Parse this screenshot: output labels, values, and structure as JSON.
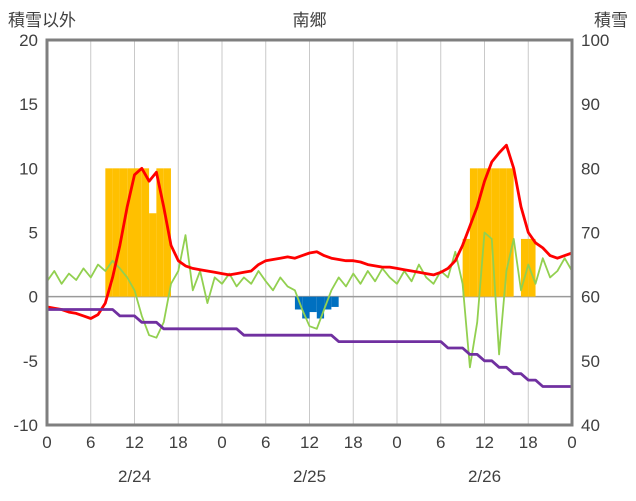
{
  "header": {
    "title": "南郷",
    "left_axis_label": "積雪以外",
    "right_axis_label": "積雪"
  },
  "chart_data": {
    "type": "mixed-bar-line",
    "x_unit": "hour",
    "x_range": [
      0,
      72
    ],
    "left_axis": {
      "label": "積雪以外",
      "range": [
        -10,
        20
      ],
      "ticks": [
        20,
        15,
        10,
        5,
        0,
        -5,
        -10
      ]
    },
    "right_axis": {
      "label": "積雪",
      "range": [
        40,
        100
      ],
      "ticks": [
        100,
        90,
        80,
        70,
        60,
        50,
        40
      ]
    },
    "x_ticks": {
      "hours": [
        0,
        6,
        12,
        18,
        24,
        30,
        36,
        42,
        48,
        54,
        60,
        66,
        72
      ],
      "labels": [
        "0",
        "6",
        "12",
        "18",
        "0",
        "6",
        "12",
        "18",
        "0",
        "6",
        "12",
        "18",
        "0"
      ]
    },
    "date_labels": [
      {
        "text": "2/24",
        "hour": 12
      },
      {
        "text": "2/25",
        "hour": 36
      },
      {
        "text": "2/26",
        "hour": 60
      }
    ],
    "grid": {
      "vertical": true,
      "horizontal": false,
      "zero_line": true
    },
    "colors": {
      "grid": "#c9c9c9",
      "zero_line": "#9a9a9a",
      "border": "#7f7f7f",
      "text": "#404040"
    },
    "series": [
      {
        "name": "orange-bars",
        "type": "bar",
        "axis": "left",
        "color": "#FFC000",
        "values": {
          "8": 10,
          "9": 10,
          "10": 10,
          "11": 10,
          "12": 10,
          "13": 10,
          "14": 6.5,
          "15": 10,
          "16": 10,
          "57": 4.5,
          "58": 10,
          "59": 10,
          "60": 10,
          "61": 10,
          "62": 10,
          "63": 10,
          "65": 4.5,
          "66": 4.5
        }
      },
      {
        "name": "blue-bars",
        "type": "bar",
        "axis": "left",
        "color": "#0070C0",
        "values": {
          "34": -1.0,
          "35": -1.7,
          "36": -1.2,
          "37": -1.7,
          "38": -1.0,
          "39": -0.8
        }
      },
      {
        "name": "green-line",
        "type": "line",
        "axis": "left",
        "color": "#92D050",
        "width": 1.8,
        "values": [
          1.2,
          2.0,
          1.0,
          1.8,
          1.3,
          2.2,
          1.5,
          2.5,
          2.0,
          2.8,
          2.2,
          1.5,
          0.5,
          -1.5,
          -3.0,
          -3.2,
          -2.0,
          1.0,
          2.0,
          4.8,
          0.5,
          2.0,
          -0.5,
          1.5,
          1.0,
          1.8,
          0.8,
          1.5,
          1.0,
          2.0,
          1.2,
          0.5,
          1.5,
          0.8,
          0.5,
          -1.0,
          -2.3,
          -2.5,
          -1.0,
          0.5,
          1.5,
          0.8,
          1.8,
          1.0,
          2.0,
          1.2,
          2.2,
          1.5,
          1.0,
          2.0,
          1.2,
          2.5,
          1.5,
          1.0,
          2.0,
          1.5,
          3.5,
          1.0,
          -5.5,
          -2.0,
          5.0,
          4.5,
          -4.5,
          2.0,
          4.5,
          0.5,
          2.5,
          1.0,
          3.0,
          1.5,
          2.0,
          3.0,
          2.0
        ]
      },
      {
        "name": "red-line",
        "type": "line",
        "axis": "left",
        "color": "#FF0000",
        "width": 2.8,
        "values": [
          -0.8,
          -0.9,
          -1.0,
          -1.2,
          -1.3,
          -1.5,
          -1.7,
          -1.4,
          -0.5,
          1.5,
          4.0,
          7.0,
          9.5,
          10.0,
          9.0,
          9.7,
          7.0,
          4.0,
          2.8,
          2.4,
          2.2,
          2.1,
          2.0,
          1.9,
          1.8,
          1.7,
          1.8,
          1.9,
          2.0,
          2.5,
          2.8,
          2.9,
          3.0,
          3.1,
          3.0,
          3.2,
          3.4,
          3.5,
          3.2,
          3.0,
          2.9,
          2.8,
          2.8,
          2.7,
          2.5,
          2.4,
          2.3,
          2.3,
          2.2,
          2.1,
          2.0,
          1.9,
          1.8,
          1.7,
          1.9,
          2.2,
          2.8,
          4.0,
          5.5,
          7.0,
          9.0,
          10.5,
          11.2,
          11.8,
          10.0,
          7.0,
          5.0,
          4.2,
          3.8,
          3.2,
          3.0,
          3.2,
          3.4
        ]
      },
      {
        "name": "purple-line",
        "type": "line",
        "axis": "right",
        "color": "#7030A0",
        "width": 2.8,
        "values": [
          58,
          58,
          58,
          58,
          58,
          58,
          58,
          58,
          58,
          58,
          57,
          57,
          57,
          56,
          56,
          56,
          55,
          55,
          55,
          55,
          55,
          55,
          55,
          55,
          55,
          55,
          55,
          54,
          54,
          54,
          54,
          54,
          54,
          54,
          54,
          54,
          54,
          54,
          54,
          54,
          53,
          53,
          53,
          53,
          53,
          53,
          53,
          53,
          53,
          53,
          53,
          53,
          53,
          53,
          53,
          52,
          52,
          52,
          51,
          51,
          50,
          50,
          49,
          49,
          48,
          48,
          47,
          47,
          46,
          46,
          46,
          46,
          46
        ]
      }
    ]
  }
}
